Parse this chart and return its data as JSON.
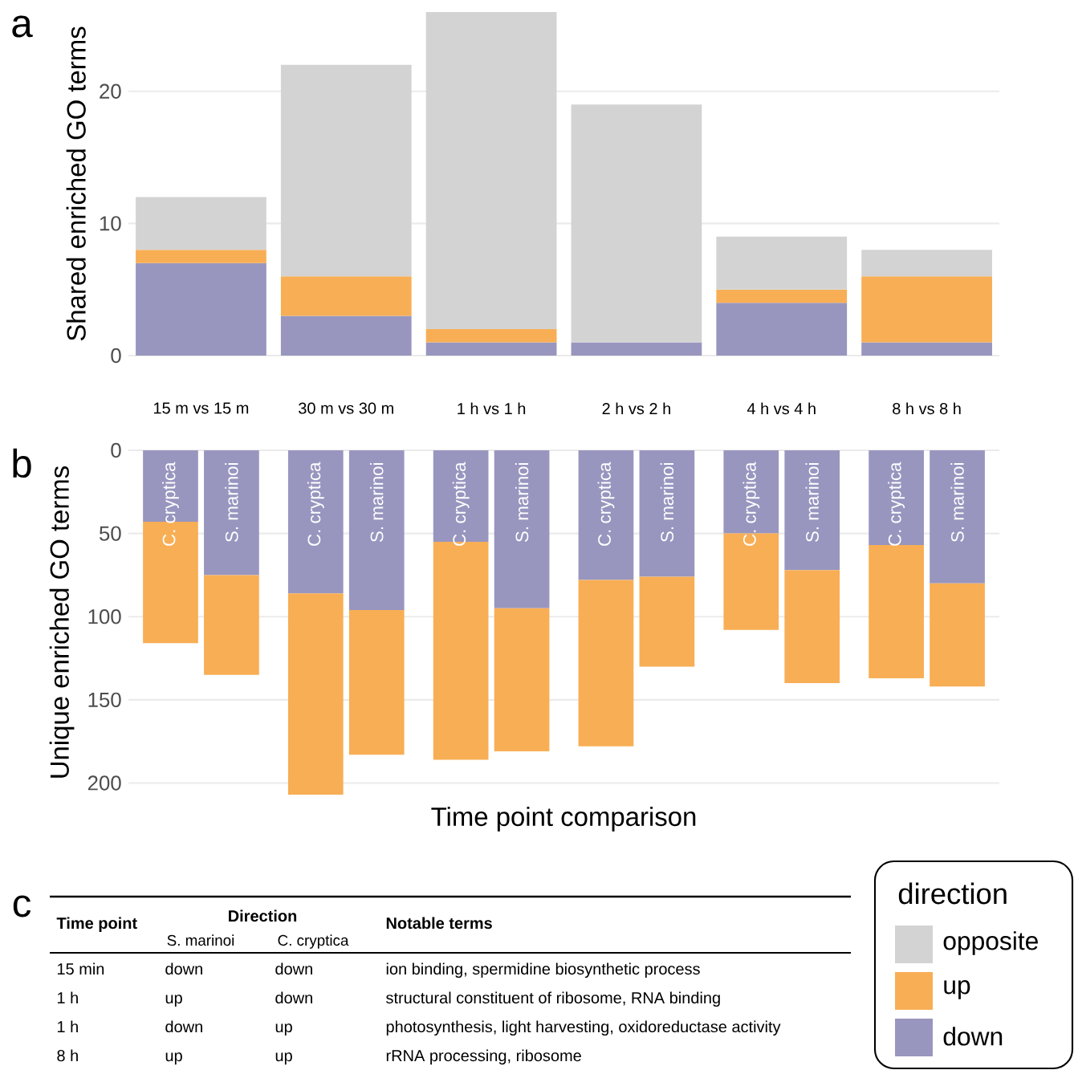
{
  "chart_data": [
    {
      "type": "bar",
      "stacked": true,
      "annotations": [
        "a"
      ],
      "ylabel": "Shared enriched GO terms",
      "categories": [
        "15 m vs 15 m",
        "30 m vs 30 m",
        "1 h vs 1 h",
        "2 h vs 2 h",
        "4 h vs 4 h",
        "8 h vs 8 h"
      ],
      "series": [
        {
          "name": "down",
          "color": "#9896bf",
          "values": [
            7,
            3,
            1,
            1,
            4,
            1
          ]
        },
        {
          "name": "up",
          "color": "#f8ae55",
          "values": [
            1,
            3,
            1,
            0,
            1,
            5
          ]
        },
        {
          "name": "opposite",
          "color": "#d3d3d3",
          "values": [
            4,
            16,
            24,
            18,
            4,
            2
          ]
        }
      ],
      "ylim": [
        0,
        26
      ],
      "yticks": [
        0,
        10,
        20
      ],
      "grid": "y",
      "legend": "bottom right",
      "legend_title": "direction"
    },
    {
      "type": "bar",
      "stacked": true,
      "annotations": [
        "b"
      ],
      "ylabel": "Unique enriched GO terms",
      "xlabel": "Time point comparison",
      "categories": [
        "C. cryptica",
        "S. marinoi",
        "C. cryptica",
        "S. marinoi",
        "C. cryptica",
        "S. marinoi",
        "C. cryptica",
        "S. marinoi",
        "C. cryptica",
        "S. marinoi",
        "C. cryptica",
        "S. marinoi"
      ],
      "series": [
        {
          "color": "#9896bf",
          "values": [
            43,
            75,
            86,
            96,
            55,
            95,
            78,
            76,
            50,
            72,
            57,
            80
          ]
        },
        {
          "color": "#f8ae55",
          "values": [
            73,
            60,
            121,
            87,
            131,
            86,
            100,
            54,
            58,
            68,
            80,
            62
          ]
        }
      ],
      "ylim": [
        207,
        0
      ],
      "yticks": [
        0,
        50,
        100,
        150,
        200
      ],
      "grid": "y"
    },
    {
      "type": "other",
      "annotations": [
        "c",
        "Time point",
        "Direction",
        "S. marinoi",
        "C. cryptica",
        "Notable terms",
        "15 min",
        "down",
        "down",
        "ion binding, spermidine biosynthetic process",
        "1 h",
        "up",
        "down",
        "structural constituent of ribosome, RNA binding",
        "1 h",
        "down",
        "up",
        "photosynthesis, light harvesting, oxidoreductase activity",
        "8 h",
        "up",
        "up",
        "rRNA processing, ribosome"
      ]
    }
  ]
}
